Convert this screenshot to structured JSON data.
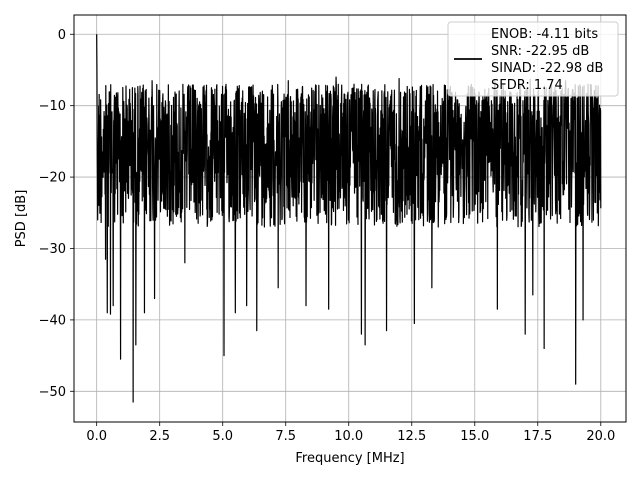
{
  "chart_data": {
    "type": "line",
    "xlabel": "Frequency [MHz]",
    "ylabel": "PSD [dB]",
    "xlim": [
      -0.9,
      21.0
    ],
    "ylim": [
      -54.3,
      2.7
    ],
    "x_ticks": [
      0.0,
      2.5,
      5.0,
      7.5,
      10.0,
      12.5,
      15.0,
      17.5,
      20.0
    ],
    "x_tick_labels": [
      "0.0",
      "2.5",
      "5.0",
      "7.5",
      "10.0",
      "12.5",
      "15.0",
      "17.5",
      "20.0"
    ],
    "y_ticks": [
      0,
      -10,
      -20,
      -30,
      -40,
      -50
    ],
    "y_tick_labels": [
      "0",
      "−10",
      "−20",
      "−30",
      "−40",
      "−50"
    ],
    "grid": true,
    "legend_position": "top-right",
    "legend_lines": [
      "ENOB: -4.11 bits",
      "SNR: -22.95 dB",
      "SINAD: -22.98 dB",
      "SFDR: 1.74"
    ],
    "series": [
      {
        "color": "#000000",
        "x_range": [
          0.0,
          20.0
        ],
        "point_count": 2048,
        "start_values": [
          0.0,
          -5.0,
          -14.0,
          -19.0,
          -26.0
        ],
        "typical_band": [
          -27.0,
          -7.0
        ],
        "upper_envelope": -6.5,
        "lower_outliers": [
          {
            "x": 0.35,
            "y": -31.5
          },
          {
            "x": 0.42,
            "y": -39.0
          },
          {
            "x": 0.55,
            "y": -39.2
          },
          {
            "x": 0.65,
            "y": -38.0
          },
          {
            "x": 0.95,
            "y": -45.5
          },
          {
            "x": 1.45,
            "y": -51.5
          },
          {
            "x": 1.55,
            "y": -43.5
          },
          {
            "x": 1.9,
            "y": -39.0
          },
          {
            "x": 2.3,
            "y": -37.0
          },
          {
            "x": 3.5,
            "y": -32.0
          },
          {
            "x": 5.05,
            "y": -45.0
          },
          {
            "x": 5.5,
            "y": -39.0
          },
          {
            "x": 5.95,
            "y": -38.0
          },
          {
            "x": 6.35,
            "y": -41.5
          },
          {
            "x": 7.2,
            "y": -35.5
          },
          {
            "x": 8.3,
            "y": -38.0
          },
          {
            "x": 9.2,
            "y": -38.5
          },
          {
            "x": 10.5,
            "y": -42.0
          },
          {
            "x": 10.65,
            "y": -43.5
          },
          {
            "x": 11.5,
            "y": -41.5
          },
          {
            "x": 12.6,
            "y": -40.5
          },
          {
            "x": 13.3,
            "y": -35.5
          },
          {
            "x": 15.9,
            "y": -38.5
          },
          {
            "x": 17.0,
            "y": -42.0
          },
          {
            "x": 17.3,
            "y": -36.5
          },
          {
            "x": 17.75,
            "y": -44.0
          },
          {
            "x": 19.0,
            "y": -49.0
          },
          {
            "x": 19.3,
            "y": -40.0
          }
        ],
        "upper_peaks": [
          {
            "x": 2.2,
            "y": -6.5
          },
          {
            "x": 7.6,
            "y": -6.5
          },
          {
            "x": 9.5,
            "y": -6.0
          },
          {
            "x": 12.0,
            "y": -6.2
          },
          {
            "x": 15.8,
            "y": -6.5
          },
          {
            "x": 17.2,
            "y": -6.3
          },
          {
            "x": 18.6,
            "y": -6.5
          }
        ]
      }
    ]
  }
}
